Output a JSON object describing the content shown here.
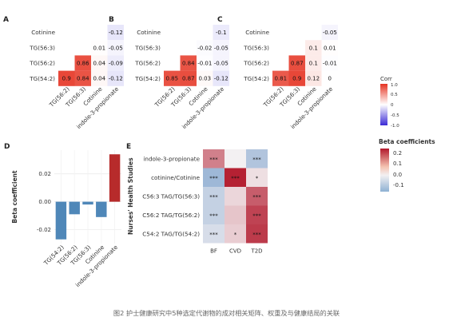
{
  "caption": "图2 护士健康研究中5种选定代谢物的成对相关矩阵、权重及与健康结局的关联",
  "panel_letters": [
    "A",
    "B",
    "C",
    "D",
    "E"
  ],
  "corr_legend": {
    "title": "Corr",
    "ticks": [
      "1.0",
      "0.5",
      "0",
      "-0.5",
      "-1.0"
    ]
  },
  "beta_legend": {
    "title": "Beta coefficients",
    "ticks": [
      "0.2",
      "0.1",
      "0.0",
      "-0.1"
    ]
  },
  "colors": {
    "pos": "#e03020",
    "neg": "#3b2bd6",
    "bar_pos": "#b72b2b",
    "bar_neg": "#4f87b8"
  },
  "chart_data": [
    {
      "type": "heatmap",
      "panel": "A",
      "rows": [
        "Cotinine",
        "TG(56:3)",
        "TG(56:2)",
        "TG(54:2)"
      ],
      "cols": [
        "TG(56:2)",
        "TG(56:3)",
        "Cotinine",
        "indole-3-propionate"
      ],
      "values": [
        [
          null,
          null,
          null,
          -0.12
        ],
        [
          null,
          null,
          0.01,
          -0.05
        ],
        [
          null,
          0.86,
          0.04,
          -0.09
        ],
        [
          0.9,
          0.84,
          0.04,
          -0.12
        ]
      ],
      "labels": [
        [
          null,
          null,
          null,
          "-0.12"
        ],
        [
          null,
          null,
          "0.01",
          "-0.05"
        ],
        [
          null,
          "0.86",
          "0.04",
          "-0.09"
        ],
        [
          "0.9",
          "0.84",
          "0.04",
          "-0.12"
        ]
      ]
    },
    {
      "type": "heatmap",
      "panel": "B",
      "rows": [
        "Cotinine",
        "TG(56:3)",
        "TG(56:2)",
        "TG(54:2)"
      ],
      "cols": [
        "TG(56:2)",
        "TG(56:3)",
        "Cotinine",
        "indole-3-propionate"
      ],
      "values": [
        [
          null,
          null,
          null,
          -0.1
        ],
        [
          null,
          null,
          -0.02,
          -0.05
        ],
        [
          null,
          0.84,
          -0.01,
          -0.05
        ],
        [
          0.85,
          0.87,
          0.03,
          -0.12
        ]
      ],
      "labels": [
        [
          null,
          null,
          null,
          "-0.1"
        ],
        [
          null,
          null,
          "-0.02",
          "-0.05"
        ],
        [
          null,
          "0.84",
          "-0.01",
          "-0.05"
        ],
        [
          "0.85",
          "0.87",
          "0.03",
          "-0.12"
        ]
      ]
    },
    {
      "type": "heatmap",
      "panel": "C",
      "rows": [
        "Cotinine",
        "TG(56:3)",
        "TG(56:2)",
        "TG(54:2)"
      ],
      "cols": [
        "TG(56:2)",
        "TG(56:3)",
        "Cotinine",
        "indole-3-propionate"
      ],
      "values": [
        [
          null,
          null,
          null,
          -0.05
        ],
        [
          null,
          null,
          0.1,
          0.01
        ],
        [
          null,
          0.87,
          0.1,
          -0.01
        ],
        [
          0.81,
          0.9,
          0.12,
          0
        ]
      ],
      "labels": [
        [
          null,
          null,
          null,
          "-0.05"
        ],
        [
          null,
          null,
          "0.1",
          "0.01"
        ],
        [
          null,
          "0.87",
          "0.1",
          "-0.01"
        ],
        [
          "0.81",
          "0.9",
          "0.12",
          "0"
        ]
      ]
    },
    {
      "type": "bar",
      "panel": "D",
      "categories": [
        "TG(54:2)",
        "TG(56:2)",
        "TG(56:3)",
        "Cotinine",
        "indole-3-propionate"
      ],
      "values": [
        -0.027,
        -0.009,
        -0.002,
        -0.011,
        0.034
      ],
      "ylabel": "Beta coefficient",
      "yticks": [
        "0.02",
        "0.00",
        "-0.02"
      ],
      "ylim": [
        -0.03,
        0.037
      ]
    },
    {
      "type": "heatmap",
      "panel": "E",
      "ylabel": "Nurses' Health Studies",
      "rows": [
        "indole-3-propionate",
        "cotinine/Cotinine",
        "C56:3 TAG/TG(56:3)",
        "C56:2 TAG/TG(56:2)",
        "C54:2 TAG/TG(54:2)"
      ],
      "cols": [
        "BF",
        "CVD",
        "T2D"
      ],
      "values": [
        [
          0.13,
          0,
          -0.07
        ],
        [
          -0.09,
          0.24,
          0.02
        ],
        [
          -0.05,
          0.03,
          0.17
        ],
        [
          -0.05,
          0.05,
          0.2
        ],
        [
          -0.03,
          0.04,
          0.21
        ]
      ],
      "labels": [
        [
          "***",
          "",
          "***"
        ],
        [
          "***",
          "***",
          "*"
        ],
        [
          "***",
          "",
          "***"
        ],
        [
          "***",
          "",
          "***"
        ],
        [
          "***",
          "*",
          "***"
        ]
      ]
    }
  ]
}
